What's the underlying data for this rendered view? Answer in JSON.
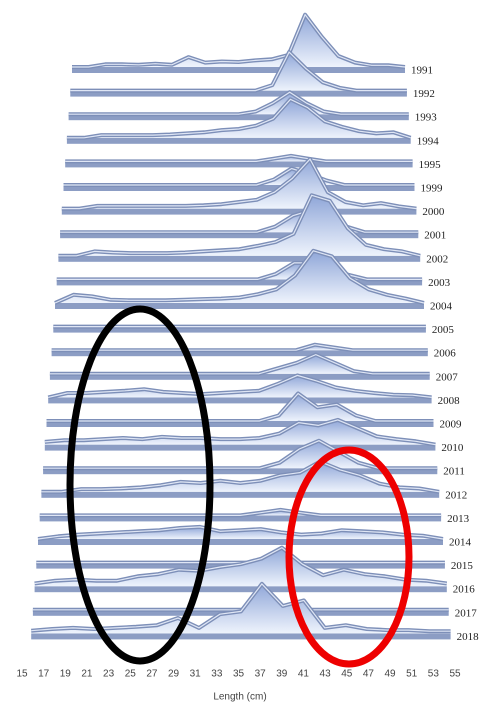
{
  "chart_data": {
    "type": "ribbon3d",
    "x_label": "Length (cm)",
    "x": [
      15,
      17,
      19,
      21,
      23,
      25,
      27,
      29,
      31,
      33,
      35,
      37,
      39,
      41,
      43,
      45,
      47,
      49,
      51,
      53,
      55
    ],
    "xlim": [
      15,
      55
    ],
    "xticks": [
      15,
      17,
      19,
      21,
      23,
      25,
      27,
      29,
      31,
      33,
      35,
      37,
      39,
      41,
      43,
      45,
      47,
      49,
      51,
      53,
      55
    ],
    "color": "#b9c9e8",
    "series": [
      {
        "name": "1991",
        "values": [
          0,
          0,
          5,
          5,
          4,
          6,
          4,
          18,
          8,
          10,
          9,
          12,
          14,
          22,
          95,
          55,
          20,
          8,
          3,
          3,
          0
        ]
      },
      {
        "name": "1992",
        "values": [
          0,
          0,
          0,
          0,
          0,
          0,
          0,
          0,
          0,
          0,
          0,
          0,
          10,
          70,
          40,
          15,
          5,
          0,
          0,
          0,
          0
        ]
      },
      {
        "name": "1993",
        "values": [
          0,
          0,
          0,
          0,
          0,
          0,
          0,
          0,
          0,
          0,
          0,
          5,
          20,
          40,
          20,
          5,
          0,
          0,
          0,
          0,
          0
        ]
      },
      {
        "name": "1994",
        "values": [
          0,
          0,
          5,
          5,
          5,
          5,
          6,
          8,
          10,
          14,
          16,
          22,
          35,
          70,
          55,
          30,
          20,
          12,
          8,
          10,
          0
        ]
      },
      {
        "name": "1995",
        "values": [
          0,
          0,
          0,
          0,
          0,
          0,
          0,
          0,
          0,
          0,
          0,
          0,
          5,
          10,
          5,
          0,
          0,
          0,
          0,
          0,
          0
        ]
      },
      {
        "name": "1999",
        "values": [
          0,
          0,
          0,
          0,
          0,
          0,
          0,
          0,
          0,
          0,
          0,
          0,
          10,
          30,
          20,
          8,
          0,
          0,
          0,
          0,
          0
        ]
      },
      {
        "name": "2000",
        "values": [
          0,
          0,
          5,
          5,
          5,
          5,
          5,
          5,
          6,
          8,
          12,
          16,
          30,
          55,
          90,
          30,
          12,
          6,
          10,
          4,
          0
        ]
      },
      {
        "name": "2001",
        "values": [
          0,
          0,
          0,
          0,
          0,
          0,
          0,
          0,
          0,
          0,
          0,
          0,
          10,
          30,
          40,
          30,
          10,
          0,
          0,
          0,
          0
        ]
      },
      {
        "name": "2002",
        "values": [
          0,
          0,
          8,
          6,
          5,
          5,
          5,
          6,
          8,
          10,
          12,
          18,
          25,
          40,
          110,
          100,
          50,
          20,
          12,
          8,
          0
        ]
      },
      {
        "name": "2003",
        "values": [
          0,
          0,
          0,
          0,
          0,
          0,
          0,
          0,
          0,
          0,
          0,
          0,
          10,
          30,
          30,
          20,
          8,
          0,
          0,
          0,
          0
        ]
      },
      {
        "name": "2004",
        "values": [
          0,
          15,
          12,
          6,
          5,
          5,
          5,
          6,
          7,
          8,
          10,
          16,
          25,
          50,
          95,
          85,
          45,
          25,
          15,
          8,
          0
        ]
      },
      {
        "name": "2005",
        "values": [
          0,
          0,
          0,
          0,
          0,
          0,
          0,
          0,
          0,
          0,
          0,
          0,
          0,
          0,
          0,
          0,
          0,
          0,
          0,
          0,
          0
        ]
      },
      {
        "name": "2006",
        "values": [
          0,
          0,
          0,
          0,
          0,
          0,
          0,
          0,
          0,
          0,
          0,
          0,
          0,
          0,
          10,
          5,
          0,
          0,
          0,
          0,
          0
        ]
      },
      {
        "name": "2007",
        "values": [
          0,
          0,
          0,
          0,
          0,
          0,
          0,
          0,
          0,
          0,
          0,
          0,
          10,
          20,
          35,
          20,
          5,
          0,
          0,
          0,
          0
        ]
      },
      {
        "name": "2008",
        "values": [
          0,
          8,
          8,
          10,
          12,
          15,
          10,
          8,
          6,
          8,
          10,
          12,
          25,
          40,
          30,
          18,
          12,
          8,
          5,
          4,
          0
        ]
      },
      {
        "name": "2009",
        "values": [
          0,
          0,
          0,
          0,
          0,
          0,
          0,
          0,
          0,
          0,
          0,
          0,
          10,
          50,
          25,
          30,
          10,
          0,
          0,
          0,
          0
        ]
      },
      {
        "name": "2010",
        "values": [
          5,
          8,
          8,
          10,
          12,
          10,
          14,
          12,
          12,
          10,
          10,
          12,
          20,
          40,
          35,
          45,
          30,
          15,
          10,
          6,
          0
        ]
      },
      {
        "name": "2011",
        "values": [
          0,
          0,
          0,
          0,
          0,
          0,
          0,
          0,
          0,
          0,
          0,
          0,
          10,
          35,
          50,
          30,
          10,
          0,
          0,
          0,
          0
        ]
      },
      {
        "name": "2012",
        "values": [
          0,
          0,
          5,
          5,
          6,
          8,
          12,
          18,
          16,
          20,
          16,
          20,
          30,
          35,
          55,
          40,
          30,
          15,
          8,
          6,
          0
        ]
      },
      {
        "name": "2013",
        "values": [
          0,
          0,
          0,
          0,
          0,
          0,
          0,
          0,
          0,
          0,
          0,
          5,
          10,
          5,
          0,
          0,
          0,
          0,
          0,
          0,
          0
        ]
      },
      {
        "name": "2014",
        "values": [
          0,
          5,
          8,
          10,
          12,
          14,
          16,
          20,
          22,
          14,
          16,
          18,
          12,
          8,
          10,
          16,
          14,
          12,
          8,
          6,
          0
        ]
      },
      {
        "name": "2015",
        "values": [
          0,
          0,
          0,
          0,
          0,
          0,
          0,
          0,
          0,
          0,
          0,
          0,
          0,
          0,
          0,
          0,
          0,
          0,
          0,
          0,
          0
        ]
      },
      {
        "name": "2016",
        "values": [
          5,
          10,
          12,
          10,
          10,
          18,
          22,
          30,
          28,
          35,
          40,
          50,
          70,
          40,
          20,
          30,
          22,
          18,
          12,
          10,
          5
        ]
      },
      {
        "name": "2017",
        "values": [
          0,
          0,
          0,
          0,
          0,
          0,
          0,
          0,
          0,
          0,
          0,
          0,
          0,
          0,
          0,
          0,
          0,
          0,
          0,
          0,
          0
        ]
      },
      {
        "name": "2018",
        "values": [
          5,
          8,
          10,
          8,
          10,
          12,
          15,
          28,
          10,
          35,
          40,
          90,
          50,
          60,
          10,
          15,
          8,
          6,
          6,
          4,
          4
        ]
      }
    ]
  }
}
